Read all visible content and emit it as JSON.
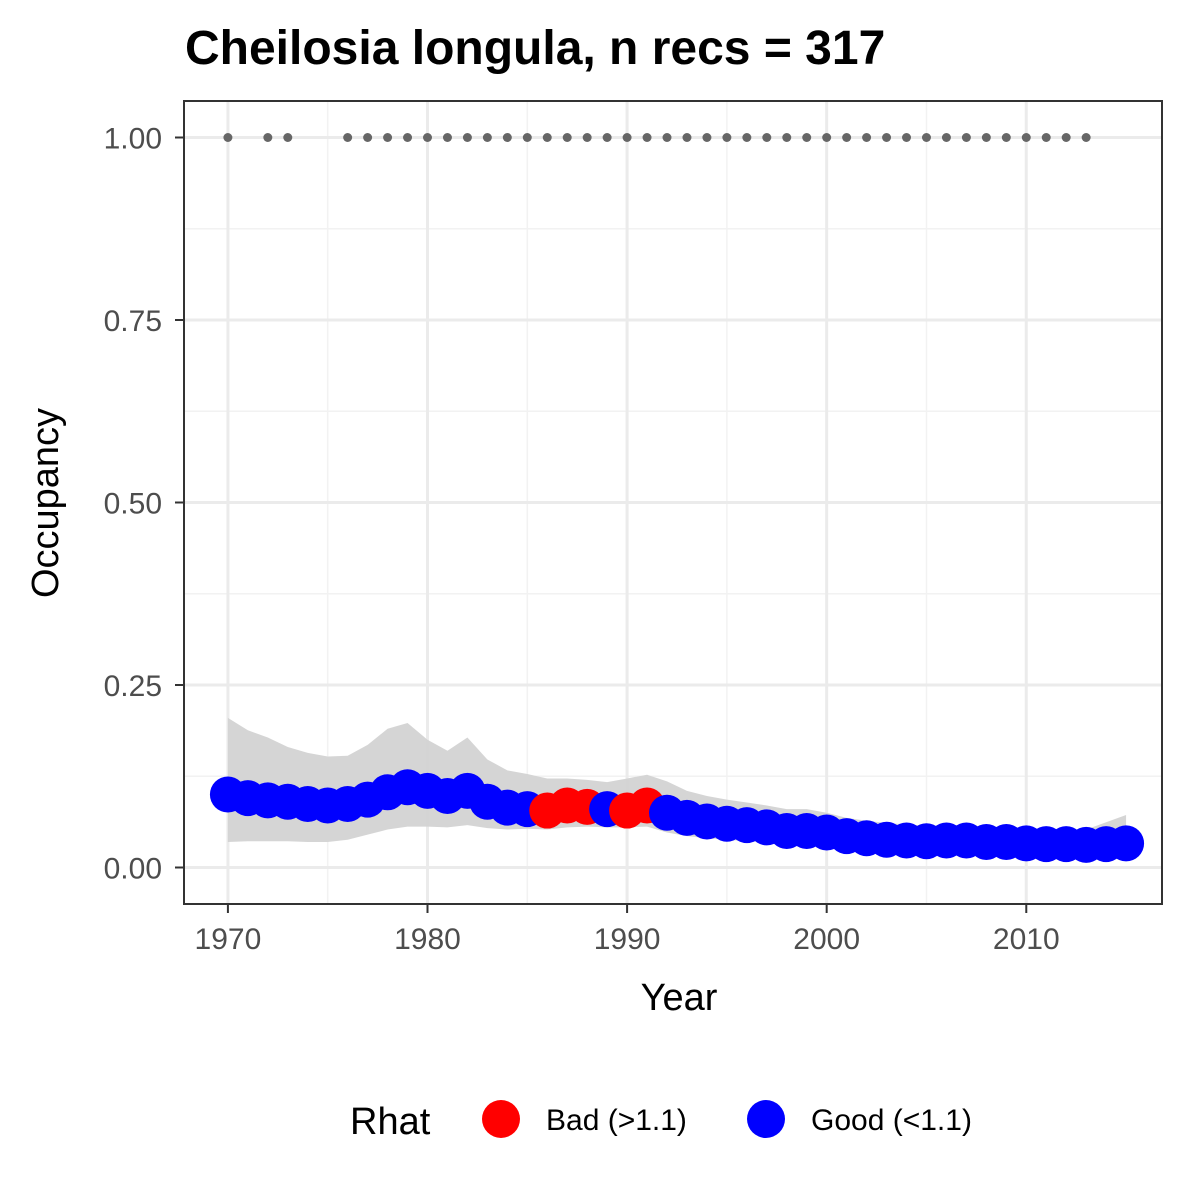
{
  "chart_data": {
    "type": "scatter",
    "title": "Cheilosia longula, n recs = 317",
    "xlabel": "Year",
    "ylabel": "Occupancy",
    "xlim": [
      1967.8,
      2016.8
    ],
    "ylim": [
      -0.05,
      1.05
    ],
    "x_ticks": [
      1970,
      1980,
      1990,
      2000,
      2010
    ],
    "x_tick_labels": [
      "1970",
      "1980",
      "1990",
      "2000",
      "2010"
    ],
    "y_ticks": [
      0,
      0.25,
      0.5,
      0.75,
      1.0
    ],
    "y_tick_labels": [
      "0.00",
      "0.25",
      "0.50",
      "0.75",
      "1.00"
    ],
    "grid": true,
    "legend": {
      "title": "Rhat",
      "position": "bottom",
      "entries": [
        {
          "label": "Bad (>1.1)",
          "color": "#ff0000"
        },
        {
          "label": "Good (<1.1)",
          "color": "#0000ff"
        }
      ]
    },
    "colors": {
      "bad": "#ff0000",
      "good": "#0000ff",
      "ribbon": "#d3d3d3",
      "record_dots": "#666666"
    },
    "series": [
      {
        "name": "Occupancy",
        "x": [
          1970,
          1971,
          1972,
          1973,
          1974,
          1975,
          1976,
          1977,
          1978,
          1979,
          1980,
          1981,
          1982,
          1983,
          1984,
          1985,
          1986,
          1987,
          1988,
          1989,
          1990,
          1991,
          1992,
          1993,
          1994,
          1995,
          1996,
          1997,
          1998,
          1999,
          2000,
          2001,
          2002,
          2003,
          2004,
          2005,
          2006,
          2007,
          2008,
          2009,
          2010,
          2011,
          2012,
          2013,
          2014,
          2015
        ],
        "y": [
          0.1,
          0.095,
          0.092,
          0.09,
          0.087,
          0.085,
          0.087,
          0.093,
          0.103,
          0.11,
          0.105,
          0.098,
          0.105,
          0.09,
          0.082,
          0.08,
          0.078,
          0.085,
          0.083,
          0.08,
          0.078,
          0.085,
          0.075,
          0.068,
          0.063,
          0.06,
          0.058,
          0.055,
          0.05,
          0.05,
          0.048,
          0.043,
          0.04,
          0.038,
          0.037,
          0.036,
          0.037,
          0.037,
          0.035,
          0.035,
          0.033,
          0.032,
          0.032,
          0.031,
          0.032,
          0.033
        ],
        "rhat": [
          "Good",
          "Good",
          "Good",
          "Good",
          "Good",
          "Good",
          "Good",
          "Good",
          "Good",
          "Good",
          "Good",
          "Good",
          "Good",
          "Good",
          "Good",
          "Good",
          "Bad",
          "Bad",
          "Bad",
          "Good",
          "Bad",
          "Bad",
          "Good",
          "Good",
          "Good",
          "Good",
          "Good",
          "Good",
          "Good",
          "Good",
          "Good",
          "Good",
          "Good",
          "Good",
          "Good",
          "Good",
          "Good",
          "Good",
          "Good",
          "Good",
          "Good",
          "Good",
          "Good",
          "Good",
          "Good",
          "Good"
        ],
        "lower": [
          0.035,
          0.036,
          0.036,
          0.036,
          0.035,
          0.035,
          0.038,
          0.045,
          0.052,
          0.056,
          0.056,
          0.055,
          0.058,
          0.054,
          0.052,
          0.053,
          0.052,
          0.055,
          0.056,
          0.055,
          0.055,
          0.056,
          0.048,
          0.043,
          0.04,
          0.038,
          0.036,
          0.034,
          0.032,
          0.031,
          0.029,
          0.027,
          0.025,
          0.024,
          0.023,
          0.022,
          0.022,
          0.022,
          0.021,
          0.02,
          0.019,
          0.018,
          0.018,
          0.017,
          0.018,
          0.018
        ],
        "upper": [
          0.205,
          0.188,
          0.178,
          0.165,
          0.157,
          0.152,
          0.153,
          0.168,
          0.19,
          0.198,
          0.175,
          0.16,
          0.178,
          0.148,
          0.133,
          0.128,
          0.122,
          0.122,
          0.12,
          0.117,
          0.122,
          0.127,
          0.118,
          0.105,
          0.098,
          0.093,
          0.089,
          0.085,
          0.08,
          0.08,
          0.075,
          0.068,
          0.064,
          0.061,
          0.059,
          0.057,
          0.058,
          0.058,
          0.056,
          0.055,
          0.053,
          0.052,
          0.051,
          0.052,
          0.062,
          0.072
        ]
      },
      {
        "name": "Records",
        "x": [
          1970,
          1972,
          1973,
          1976,
          1977,
          1978,
          1979,
          1980,
          1981,
          1982,
          1983,
          1984,
          1985,
          1986,
          1987,
          1988,
          1989,
          1990,
          1991,
          1992,
          1993,
          1994,
          1995,
          1996,
          1997,
          1998,
          1999,
          2000,
          2001,
          2002,
          2003,
          2004,
          2005,
          2006,
          2007,
          2008,
          2009,
          2010,
          2011,
          2012,
          2013
        ],
        "y": [
          1,
          1,
          1,
          1,
          1,
          1,
          1,
          1,
          1,
          1,
          1,
          1,
          1,
          1,
          1,
          1,
          1,
          1,
          1,
          1,
          1,
          1,
          1,
          1,
          1,
          1,
          1,
          1,
          1,
          1,
          1,
          1,
          1,
          1,
          1,
          1,
          1,
          1,
          1,
          1,
          1
        ]
      }
    ]
  }
}
